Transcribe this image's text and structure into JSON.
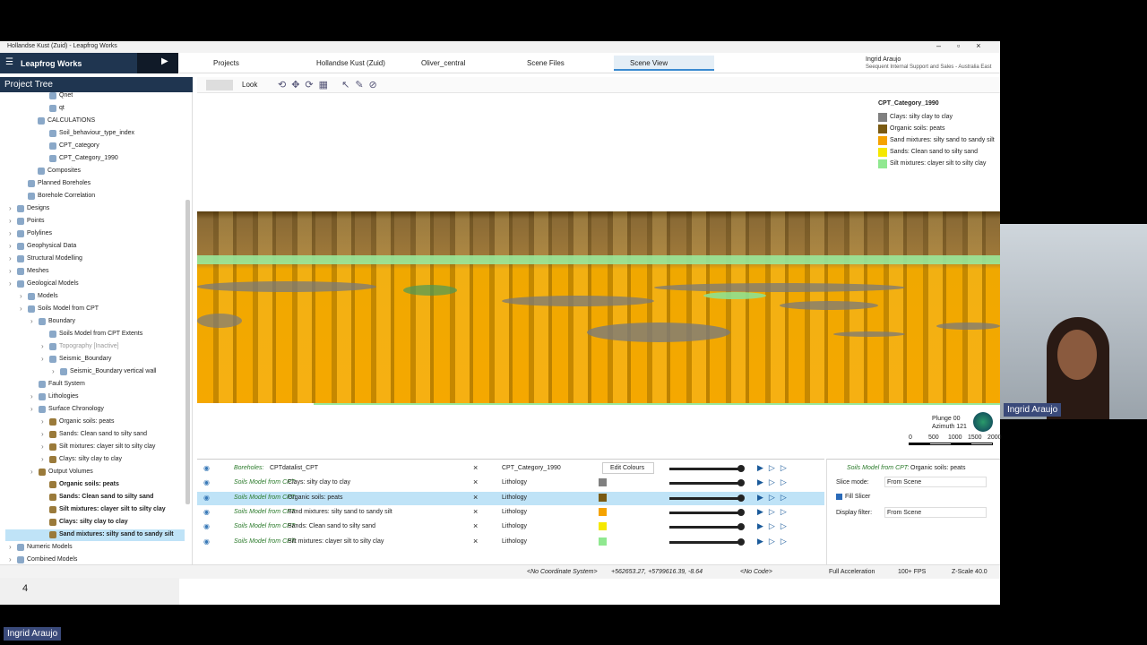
{
  "window_title": "Hollandse Kust (Zuid) - Leapfrog Works",
  "app_name": "Leapfrog Works",
  "tabs": [
    "Projects",
    "Hollandse Kust (Zuid)",
    "Oliver_central",
    "Scene Files",
    "Scene View"
  ],
  "user": {
    "name": "Ingrid Araujo",
    "role": "Seequent Internal Support and Sales - Australia East"
  },
  "toolbar_look": "Look",
  "project_tree": {
    "title": "Project Tree",
    "items": [
      "Qnet",
      "qt",
      "CALCULATIONS",
      "Soil_behaviour_type_index",
      "CPT_category",
      "CPT_Category_1990",
      "Composites",
      "Planned Boreholes",
      "Borehole Correlation",
      "Designs",
      "Points",
      "Polylines",
      "Geophysical Data",
      "Structural Modelling",
      "Meshes",
      "Geological Models",
      "Models",
      "Soils Model from CPT",
      "Boundary",
      "Soils Model from CPT Extents",
      "Topography [Inactive]",
      "Seismic_Boundary",
      "Seismic_Boundary vertical wall",
      "Fault System",
      "Lithologies",
      "Surface Chronology",
      "Organic soils: peats",
      "Sands: Clean sand to silty sand",
      "Silt mixtures: clayer silt to silty clay",
      "Clays: silty clay to clay",
      "Output Volumes",
      "Organic soils: peats",
      "Sands: Clean sand to silty sand",
      "Silt mixtures: clayer silt to silty clay",
      "Clays: silty clay to clay",
      "Sand mixtures: silty sand to sandy silt",
      "Numeric Models",
      "Combined Models"
    ]
  },
  "legend": {
    "title": "CPT_Category_1990",
    "items": [
      {
        "label": "Clays: silty clay to clay",
        "color": "#808080"
      },
      {
        "label": "Organic soils: peats",
        "color": "#7a5a12"
      },
      {
        "label": "Sand mixtures: silty sand to sandy silt",
        "color": "#f5a300"
      },
      {
        "label": "Sands: Clean sand to silty sand",
        "color": "#f5e800"
      },
      {
        "label": "Silt mixtures: clayer silt to silty clay",
        "color": "#90e890"
      }
    ]
  },
  "scene": {
    "plunge": "Plunge 00",
    "azimuth": "Azimuth 121",
    "scale": [
      "0",
      "500",
      "1000",
      "1500",
      "2000"
    ]
  },
  "shown_objects": [
    {
      "prefix": "Boreholes:",
      "name": "CPTdatalist_CPT",
      "property": "CPT_Category_1990",
      "button": "Edit Colours"
    },
    {
      "prefix": "Soils Model from CPT:",
      "name": "Clays: silty clay to clay",
      "property": "Lithology",
      "color": "#808080"
    },
    {
      "prefix": "Soils Model from CPT:",
      "name": "Organic soils: peats",
      "property": "Lithology",
      "color": "#7a5a12"
    },
    {
      "prefix": "Soils Model from CPT:",
      "name": "Sand mixtures: silty sand to sandy silt",
      "property": "Lithology",
      "color": "#f5a300"
    },
    {
      "prefix": "Soils Model from CPT:",
      "name": "Sands: Clean sand to silty sand",
      "property": "Lithology",
      "color": "#f5e800"
    },
    {
      "prefix": "Soils Model from CPT:",
      "name": "Silt mixtures: clayer silt to silty clay",
      "property": "Lithology",
      "color": "#90e890"
    }
  ],
  "properties": {
    "prefix": "Soils Model from CPT:",
    "name": "Organic soils: peats",
    "slice_mode_label": "Slice mode:",
    "slice_mode": "From Scene",
    "fill_slicer": "Fill Slicer",
    "display_filter_label": "Display filter:",
    "display_filter": "From Scene"
  },
  "status": [
    "<No Coordinate System>",
    "+562653.27, +5799616.39, -8.64",
    "<No Code>",
    "Full Acceleration",
    "100+ FPS",
    "Z-Scale 40.0"
  ],
  "page_number": "4",
  "video_name": "Ingrid Araujo",
  "presenter_name": "Ingrid Araujo"
}
